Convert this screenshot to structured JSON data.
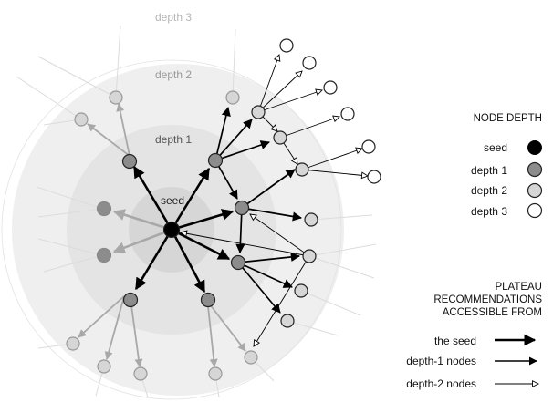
{
  "rings": {
    "depth3_label": "depth 3",
    "depth2_label": "depth 2",
    "depth1_label": "depth 1",
    "seed_label": "seed"
  },
  "legend_node_depth": {
    "heading": "NODE DEPTH",
    "items": [
      {
        "label": "seed",
        "fill": "#000000"
      },
      {
        "label": "depth 1",
        "fill": "#8c8c8c"
      },
      {
        "label": "depth 2",
        "fill": "#d6d6d6"
      },
      {
        "label": "depth 3",
        "fill": "#ffffff"
      }
    ]
  },
  "legend_plateau": {
    "heading_lines": [
      "PLATEAU",
      "RECOMMENDATIONS",
      "ACCESSIBLE FROM"
    ],
    "items": [
      {
        "label": "the seed",
        "style": "seed"
      },
      {
        "label": "depth-1 nodes",
        "style": "d1"
      },
      {
        "label": "depth-2 nodes",
        "style": "d2"
      }
    ]
  },
  "colors": {
    "seed": "#000000",
    "depth1": "#8c8c8c",
    "depth2": "#d6d6d6",
    "depth3": "#ffffff",
    "gray_arrow": "#a8a8a8"
  }
}
